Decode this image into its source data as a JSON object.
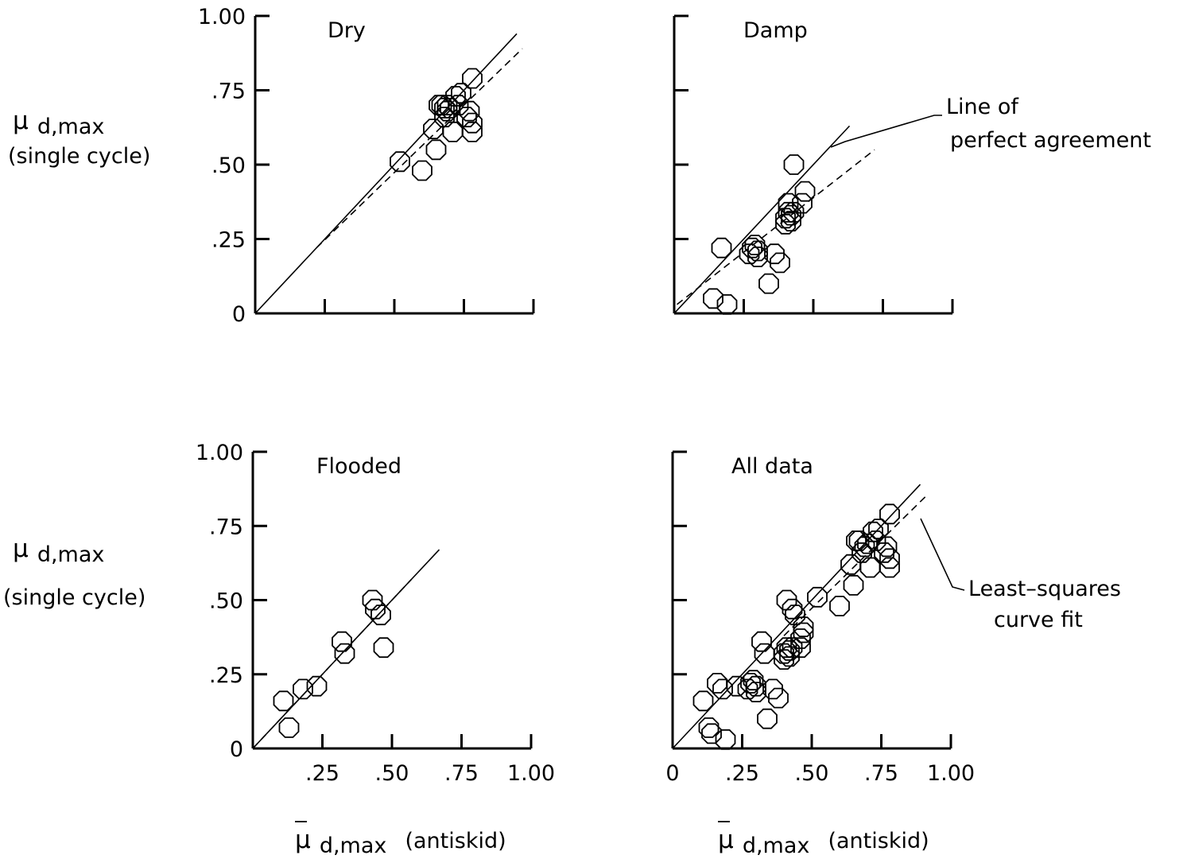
{
  "figure": {
    "y_label": {
      "symbol": "μ",
      "sub": "d,max",
      "line2": "(single cycle)"
    },
    "x_label": {
      "symbol": "μ",
      "sub": "d,max",
      "suffix": "(antiskid)"
    },
    "annotations": {
      "perfect": [
        "Line of",
        "perfect agreement"
      ],
      "lsq": [
        "Least–squares",
        "curve fit"
      ]
    }
  },
  "chart_data": [
    {
      "type": "scatter",
      "title": "Dry",
      "xlim": [
        0,
        1.0
      ],
      "ylim": [
        0,
        1.0
      ],
      "yticks": [
        "0",
        ".25",
        ".50",
        ".75",
        "1.00"
      ],
      "xticks": [],
      "perfect_agreement": {
        "x": [
          0,
          0.94
        ]
      },
      "least_squares": {
        "x": [
          0.22,
          0.96
        ],
        "y": [
          0.22,
          0.89
        ]
      },
      "points": {
        "x": [
          0.52,
          0.6,
          0.64,
          0.65,
          0.66,
          0.67,
          0.68,
          0.68,
          0.69,
          0.69,
          0.7,
          0.71,
          0.72,
          0.73,
          0.74,
          0.76,
          0.77,
          0.78,
          0.78,
          0.78
        ],
        "y": [
          0.51,
          0.48,
          0.62,
          0.55,
          0.7,
          0.7,
          0.66,
          0.69,
          0.68,
          0.7,
          0.69,
          0.61,
          0.73,
          0.7,
          0.74,
          0.66,
          0.68,
          0.61,
          0.64,
          0.79
        ]
      }
    },
    {
      "type": "scatter",
      "title": "Damp",
      "xlim": [
        0,
        1.0
      ],
      "ylim": [
        0,
        1.0
      ],
      "yticks": [],
      "xticks": [],
      "perfect_agreement": {
        "x": [
          0,
          0.63
        ]
      },
      "least_squares": {
        "x": [
          0.01,
          0.72
        ],
        "y": [
          0.03,
          0.55
        ]
      },
      "points": {
        "x": [
          0.14,
          0.17,
          0.19,
          0.27,
          0.28,
          0.29,
          0.3,
          0.3,
          0.34,
          0.36,
          0.38,
          0.4,
          0.4,
          0.41,
          0.41,
          0.42,
          0.42,
          0.43,
          0.43,
          0.46,
          0.47
        ],
        "y": [
          0.05,
          0.22,
          0.03,
          0.2,
          0.22,
          0.23,
          0.19,
          0.21,
          0.1,
          0.2,
          0.17,
          0.32,
          0.3,
          0.34,
          0.37,
          0.33,
          0.31,
          0.5,
          0.34,
          0.37,
          0.41
        ]
      }
    },
    {
      "type": "scatter",
      "title": "Flooded",
      "xlim": [
        0,
        1.0
      ],
      "ylim": [
        0,
        1.0
      ],
      "yticks": [
        "0",
        ".25",
        ".50",
        ".75",
        "1.00"
      ],
      "xticks": [
        ".25",
        ".50",
        ".75",
        "1.00"
      ],
      "perfect_agreement": {
        "x": [
          0,
          0.67
        ]
      },
      "least_squares": {
        "x": [
          0,
          0.57
        ],
        "y": [
          0,
          0.57
        ]
      },
      "points": {
        "x": [
          0.11,
          0.13,
          0.18,
          0.23,
          0.32,
          0.33,
          0.43,
          0.44,
          0.46,
          0.47
        ],
        "y": [
          0.16,
          0.07,
          0.2,
          0.21,
          0.36,
          0.32,
          0.5,
          0.47,
          0.45,
          0.34
        ]
      }
    },
    {
      "type": "scatter",
      "title": "All data",
      "xlim": [
        0,
        1.0
      ],
      "ylim": [
        0,
        1.0
      ],
      "yticks": [],
      "xticks": [
        "0",
        ".25",
        ".50",
        ".75",
        "1.00"
      ],
      "perfect_agreement": {
        "x": [
          0,
          0.89
        ]
      },
      "least_squares": {
        "x": [
          0.4,
          0.91
        ],
        "y": [
          0.38,
          0.85
        ]
      },
      "points": {
        "x": [
          0.11,
          0.13,
          0.14,
          0.16,
          0.18,
          0.19,
          0.23,
          0.27,
          0.28,
          0.29,
          0.3,
          0.3,
          0.32,
          0.33,
          0.34,
          0.36,
          0.38,
          0.4,
          0.4,
          0.41,
          0.41,
          0.42,
          0.42,
          0.43,
          0.43,
          0.44,
          0.46,
          0.46,
          0.47,
          0.47,
          0.52,
          0.6,
          0.64,
          0.65,
          0.66,
          0.67,
          0.68,
          0.69,
          0.7,
          0.71,
          0.72,
          0.73,
          0.74,
          0.76,
          0.77,
          0.78,
          0.78,
          0.78
        ],
        "y": [
          0.16,
          0.07,
          0.05,
          0.22,
          0.2,
          0.03,
          0.21,
          0.2,
          0.22,
          0.23,
          0.19,
          0.21,
          0.36,
          0.32,
          0.1,
          0.2,
          0.17,
          0.32,
          0.3,
          0.34,
          0.5,
          0.33,
          0.31,
          0.47,
          0.34,
          0.45,
          0.37,
          0.34,
          0.41,
          0.39,
          0.51,
          0.48,
          0.62,
          0.55,
          0.7,
          0.7,
          0.66,
          0.68,
          0.69,
          0.61,
          0.73,
          0.7,
          0.74,
          0.66,
          0.68,
          0.61,
          0.64,
          0.79
        ]
      }
    }
  ]
}
